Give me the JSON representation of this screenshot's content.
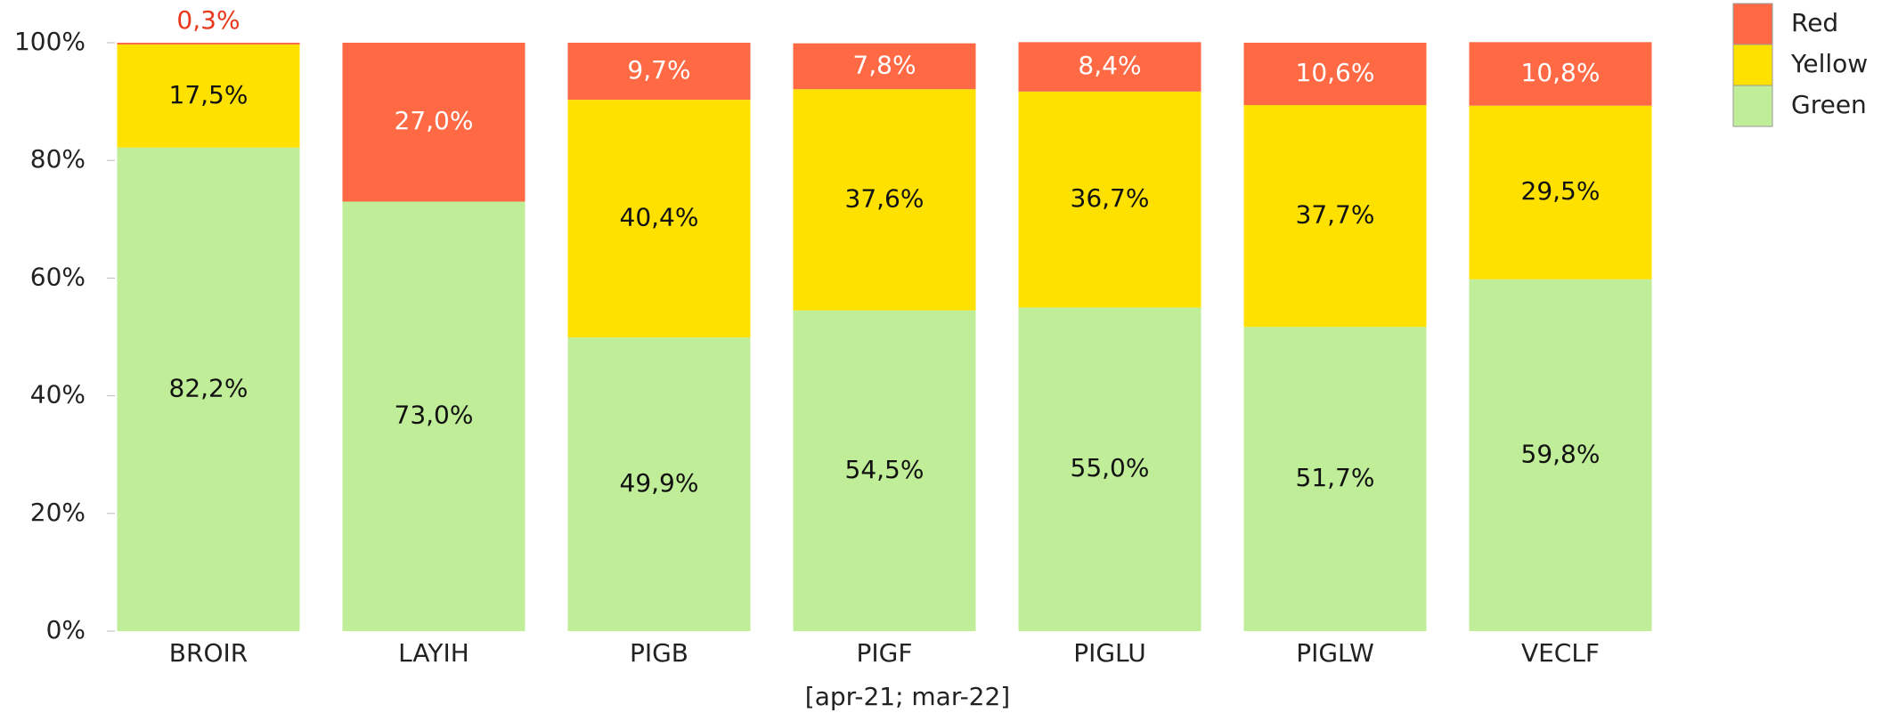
{
  "chart_data": {
    "type": "stacked_bar",
    "x_label": "[apr-21; mar-22]",
    "categories": [
      "BROIR",
      "LAYIH",
      "PIGB",
      "PIGF",
      "PIGLU",
      "PIGLW",
      "VECLF"
    ],
    "series": [
      {
        "name": "Green",
        "color": "#c0ed97",
        "values": [
          82.2,
          73.0,
          49.9,
          54.5,
          55.0,
          51.7,
          59.8
        ],
        "value_labels": [
          "82,2%",
          "73,0%",
          "49,9%",
          "54,5%",
          "55,0%",
          "51,7%",
          "59,8%"
        ]
      },
      {
        "name": "Yellow",
        "color": "#ffe100",
        "values": [
          17.5,
          null,
          40.4,
          37.6,
          36.7,
          37.7,
          29.5
        ],
        "value_labels": [
          "17,5%",
          null,
          "40,4%",
          "37,6%",
          "36,7%",
          "37,7%",
          "29,5%"
        ]
      },
      {
        "name": "Red",
        "color": "#ff6a45",
        "values": [
          0.3,
          27.0,
          9.7,
          7.8,
          8.4,
          10.6,
          10.8
        ],
        "value_labels": [
          "0,3%",
          "27,0%",
          "9,7%",
          "7,8%",
          "8,4%",
          "10,6%",
          "10,8%"
        ]
      }
    ],
    "ylim": [
      0,
      100
    ],
    "yticks": [
      {
        "value": 0,
        "label": "0%"
      },
      {
        "value": 20,
        "label": "20%"
      },
      {
        "value": 40,
        "label": "40%"
      },
      {
        "value": 60,
        "label": "60%"
      },
      {
        "value": 80,
        "label": "80%"
      },
      {
        "value": 100,
        "label": "100%"
      }
    ],
    "grid": false,
    "legend": "top-right"
  }
}
